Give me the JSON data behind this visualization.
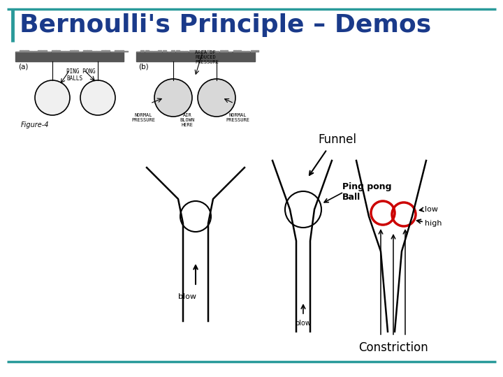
{
  "title": "Bernoulli's Principle – Demos",
  "title_color": "#1a3a8a",
  "title_fontsize": 26,
  "bg_color": "#ffffff",
  "border_color": "#2a9a9a",
  "funnel_label": "Funnel",
  "pingpong_label": "Ping pong\nBall",
  "constriction_label": "Constriction",
  "blow_top": "blow",
  "blow_bottom": "blow",
  "low_label": "low",
  "high_label": "high",
  "figure4_label": "Figure-4",
  "red_circle_color": "#cc0000",
  "label_a": "(a)",
  "label_b": "(b)",
  "ping_pong_balls": "PING PONG\nBALLS",
  "area_reduced": "AREA OF\nREDUCED\nPRESSURE",
  "normal_pressure_left": "NORMAL\nPRESSURE",
  "air_blown": "AIR\nBLOWN\nHERE",
  "normal_pressure_right": "NORMAL\nPRESSURE"
}
